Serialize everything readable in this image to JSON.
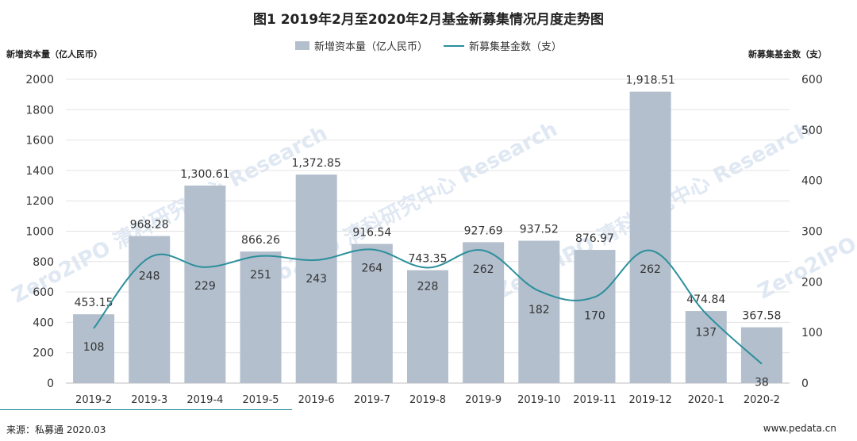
{
  "page": {
    "title": "图1  2019年2月至2020年2月基金新募集情况月度走势图",
    "left_axis_caption": "新增资本量（亿人民币）",
    "right_axis_caption": "新募集基金数（支）",
    "source": "来源：私募通 2020.03",
    "site": "www.pedata.cn",
    "watermarks": [
      "Zero2IPO 清科研究中心 Research",
      "Zero2IPO 清科研究中心 Research",
      "Zero2IPO 清科研究中心 Research",
      "Zero2IPO 清科研究中心 Research"
    ]
  },
  "chart_data": {
    "type": "bar",
    "title": "图1  2019年2月至2020年2月基金新募集情况月度走势图",
    "categories": [
      "2019-2",
      "2019-3",
      "2019-4",
      "2019-5",
      "2019-6",
      "2019-7",
      "2019-8",
      "2019-9",
      "2019-10",
      "2019-11",
      "2019-12",
      "2020-1",
      "2020-2"
    ],
    "series": [
      {
        "name": "新增资本量（亿人民币）",
        "type": "bar",
        "axis": "left",
        "color": "#b3bfcd",
        "values": [
          453.15,
          968.28,
          1300.61,
          866.26,
          1372.85,
          916.54,
          743.35,
          927.69,
          937.52,
          876.97,
          1918.51,
          474.84,
          367.58
        ],
        "labels": [
          "453.15",
          "968.28",
          "1,300.61",
          "866.26",
          "1,372.85",
          "916.54",
          "743.35",
          "927.69",
          "937.52",
          "876.97",
          "1,918.51",
          "474.84",
          "367.58"
        ]
      },
      {
        "name": "新募集基金数（支）",
        "type": "line",
        "axis": "right",
        "color": "#2b8f9b",
        "values": [
          108,
          248,
          229,
          251,
          243,
          264,
          228,
          262,
          182,
          170,
          262,
          137,
          38
        ],
        "labels": [
          "108",
          "248",
          "229",
          "251",
          "243",
          "264",
          "228",
          "262",
          "182",
          "170",
          "262",
          "137",
          "38"
        ]
      }
    ],
    "ylabel_left": "新增资本量（亿人民币）",
    "ylabel_right": "新募集基金数（支）",
    "ylim_left": [
      0,
      2000
    ],
    "yticks_left": [
      0,
      200,
      400,
      600,
      800,
      1000,
      1200,
      1400,
      1600,
      1800,
      2000
    ],
    "ylim_right": [
      0,
      600
    ],
    "yticks_right": [
      0,
      100,
      200,
      300,
      400,
      500,
      600
    ],
    "grid": true,
    "legend_position": "top-center"
  }
}
